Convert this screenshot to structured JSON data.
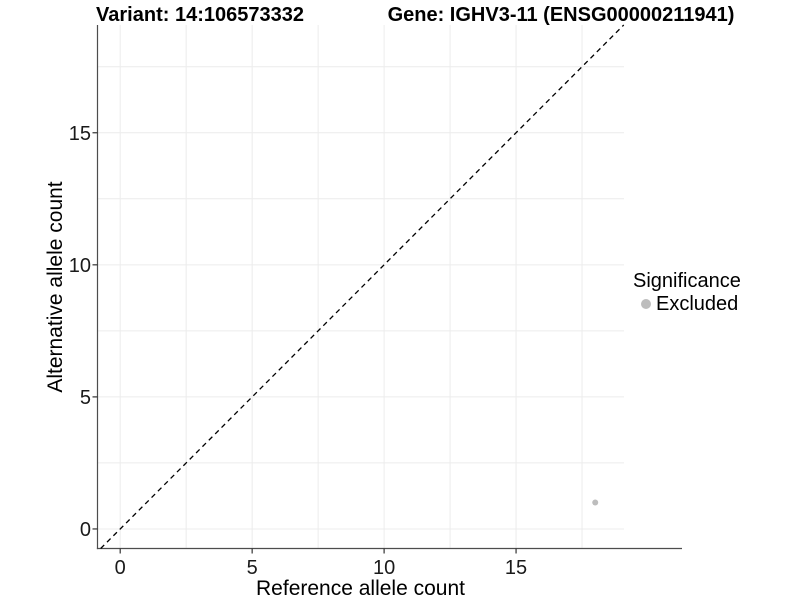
{
  "header": {
    "variant_title": "Variant: 14:106573332",
    "gene_title": "Gene: IGHV3-11 (ENSG00000211941)"
  },
  "chart_data": {
    "type": "scatter",
    "xlabel": "Reference allele count",
    "ylabel": "Alternative allele count",
    "xlim": [
      -0.86,
      19.09
    ],
    "ylim": [
      -0.74,
      19.08
    ],
    "x_ticks": [
      0,
      5,
      10,
      15
    ],
    "y_ticks": [
      0,
      5,
      10,
      15
    ],
    "x_gridlines": [
      0,
      2.5,
      5,
      7.5,
      10,
      12.5,
      15,
      17.5
    ],
    "y_gridlines": [
      0,
      2.5,
      5,
      7.5,
      10,
      12.5,
      15,
      17.5
    ],
    "grid": true,
    "identity_line": {
      "style": "dashed",
      "x1": -0.74,
      "y1": -0.74,
      "x2": 19.08,
      "y2": 19.08
    },
    "series": [
      {
        "name": "Excluded",
        "color": "#bdbdbd",
        "points": [
          {
            "x": 18,
            "y": 1
          }
        ]
      }
    ],
    "legend": {
      "title": "Significance",
      "position": "right",
      "items": [
        {
          "label": "Excluded",
          "color": "#bdbdbd"
        }
      ]
    }
  },
  "colors": {
    "gridline": "#ececec",
    "axis_line": "#4d4d4d",
    "tick_mark": "#333333",
    "tick_label": "#1a1a1a",
    "dashed_line": "#000000",
    "point": "#bdbdbd"
  }
}
